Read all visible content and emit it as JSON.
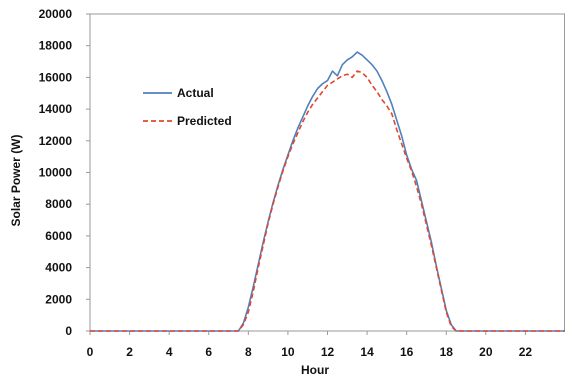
{
  "chart_data": {
    "type": "line",
    "title": "",
    "xlabel": "Hour",
    "ylabel": "Solar Power  (W)",
    "xlim": [
      0,
      24
    ],
    "ylim": [
      0,
      20000
    ],
    "xticks": [
      0,
      2,
      4,
      6,
      8,
      10,
      12,
      14,
      16,
      18,
      20,
      22
    ],
    "yticks": [
      0,
      2000,
      4000,
      6000,
      8000,
      10000,
      12000,
      14000,
      16000,
      18000,
      20000
    ],
    "grid": false,
    "legend": "upper-left",
    "series": [
      {
        "name": "Actual",
        "color": "#4f81bd",
        "dash": "solid",
        "x": [
          0,
          7.5,
          7.75,
          8.0,
          8.25,
          8.5,
          8.75,
          9.0,
          9.25,
          9.5,
          9.75,
          10.0,
          10.25,
          10.5,
          10.75,
          11.0,
          11.25,
          11.5,
          11.75,
          12.0,
          12.25,
          12.5,
          12.75,
          13.0,
          13.25,
          13.5,
          13.75,
          14.0,
          14.25,
          14.5,
          14.75,
          15.0,
          15.25,
          15.5,
          15.75,
          16.0,
          16.25,
          16.5,
          16.75,
          17.0,
          17.25,
          17.5,
          17.75,
          18.0,
          18.25,
          18.5,
          18.75,
          19.0,
          24
        ],
        "values": [
          0,
          0,
          500,
          1500,
          2800,
          4200,
          5600,
          6900,
          8100,
          9200,
          10200,
          11100,
          12000,
          12800,
          13500,
          14200,
          14800,
          15300,
          15600,
          15800,
          16400,
          16100,
          16800,
          17100,
          17300,
          17600,
          17400,
          17100,
          16800,
          16400,
          15800,
          15100,
          14300,
          13300,
          12300,
          11100,
          10200,
          9500,
          8200,
          6900,
          5600,
          4100,
          2700,
          1300,
          400,
          0,
          0,
          0,
          0
        ]
      },
      {
        "name": "Predicted",
        "color": "#e0472f",
        "dash": "dashed",
        "x": [
          0,
          7.5,
          7.75,
          8.0,
          8.25,
          8.5,
          8.75,
          9.0,
          9.25,
          9.5,
          9.75,
          10.0,
          10.25,
          10.5,
          10.75,
          11.0,
          11.25,
          11.5,
          11.75,
          12.0,
          12.25,
          12.5,
          12.75,
          13.0,
          13.25,
          13.5,
          13.75,
          14.0,
          14.25,
          14.5,
          14.75,
          15.0,
          15.25,
          15.5,
          15.75,
          16.0,
          16.25,
          16.5,
          16.75,
          17.0,
          17.25,
          17.5,
          17.75,
          18.0,
          18.25,
          18.5,
          18.75,
          19.0,
          24
        ],
        "values": [
          0,
          0,
          400,
          1200,
          2500,
          4000,
          5400,
          6800,
          8000,
          9100,
          10100,
          11000,
          11800,
          12500,
          13200,
          13800,
          14300,
          14700,
          15100,
          15500,
          15700,
          15900,
          16100,
          16200,
          16000,
          16400,
          16300,
          16000,
          15500,
          15100,
          14600,
          14200,
          13700,
          12700,
          11800,
          10900,
          10100,
          9100,
          8000,
          6700,
          5400,
          4000,
          2600,
          1200,
          300,
          0,
          0,
          0,
          0
        ]
      }
    ]
  }
}
